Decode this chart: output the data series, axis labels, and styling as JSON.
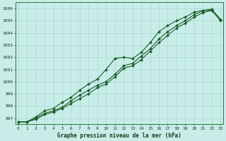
{
  "xlabel": "Graphe pression niveau de la mer (hPa)",
  "background_color": "#c8ece8",
  "grid_color": "#a8d8d0",
  "line_color": "#1a5e2a",
  "hours": [
    0,
    1,
    2,
    3,
    4,
    5,
    6,
    7,
    8,
    9,
    10,
    11,
    12,
    13,
    14,
    15,
    16,
    17,
    18,
    19,
    20,
    21,
    22,
    23
  ],
  "series1": [
    996.7,
    996.7,
    997.1,
    997.6,
    997.8,
    998.3,
    998.7,
    999.3,
    999.8,
    1000.2,
    1001.0,
    1001.9,
    1002.0,
    1001.9,
    1002.4,
    1003.2,
    1004.1,
    1004.6,
    1005.0,
    1005.3,
    1005.7,
    1005.85,
    1005.95,
    1005.1
  ],
  "series2": [
    996.7,
    996.7,
    997.0,
    997.4,
    997.6,
    997.9,
    998.4,
    998.9,
    999.3,
    999.7,
    1000.0,
    1000.6,
    1001.3,
    1001.5,
    1002.1,
    1002.7,
    1003.5,
    1004.1,
    1004.6,
    1005.0,
    1005.5,
    1005.8,
    1005.9,
    1005.1
  ],
  "series3": [
    996.7,
    996.7,
    996.9,
    997.3,
    997.5,
    997.8,
    998.2,
    998.6,
    999.0,
    999.5,
    999.8,
    1000.4,
    1001.1,
    1001.3,
    1001.8,
    1002.5,
    1003.2,
    1003.8,
    1004.4,
    1004.8,
    1005.3,
    1005.65,
    1005.85,
    1005.0
  ],
  "ylim": [
    996.5,
    1006.5
  ],
  "yticks": [
    997,
    998,
    999,
    1000,
    1001,
    1002,
    1003,
    1004,
    1005,
    1006
  ],
  "xlim": [
    -0.3,
    23.3
  ],
  "marker": "D",
  "marker_size": 2.0,
  "line_width": 0.8
}
